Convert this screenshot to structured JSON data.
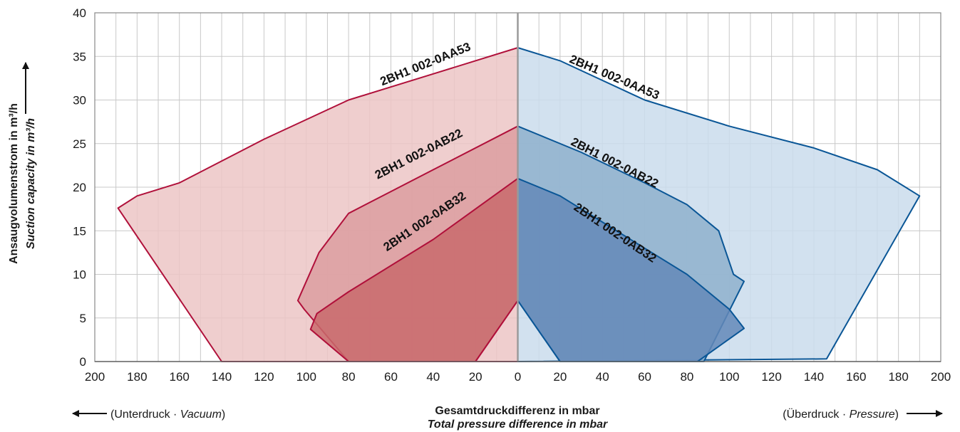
{
  "chart_data": {
    "type": "area",
    "title": "",
    "xlabel": "Gesamtdruckdifferenz in mbar",
    "xlabel_en": "Total pressure difference in mbar",
    "ylabel": "Ansaugvolumenstrom in m³/h",
    "ylabel_en": "Suction capacity in m³/h",
    "left_direction": {
      "prefix": "(Unterdruck · ",
      "italic": "Vacuum",
      "suffix": ")"
    },
    "right_direction": {
      "prefix": "(Überdruck · ",
      "italic": "Pressure",
      "suffix": ")"
    },
    "x_ticks": [
      "200",
      "180",
      "160",
      "140",
      "120",
      "100",
      "80",
      "60",
      "40",
      "20",
      "0",
      "20",
      "40",
      "60",
      "80",
      "100",
      "120",
      "140",
      "160",
      "180",
      "200"
    ],
    "y_ticks": [
      "0",
      "5",
      "10",
      "15",
      "20",
      "25",
      "30",
      "35",
      "40"
    ],
    "xlim": [
      -200,
      200
    ],
    "ylim": [
      0,
      40
    ],
    "grid": true,
    "colors": {
      "vacuum_line": "#b0103a",
      "pressure_line": "#0a5696",
      "vacuum_fill_light": "#ecc6c5",
      "vacuum_fill_mid": "#dc9ea0",
      "vacuum_fill_dark": "#c96a6c",
      "pressure_fill_light": "#cadcec",
      "pressure_fill_mid": "#8fb0cc",
      "pressure_fill_dark": "#6488b8",
      "grid": "#c8c8c8"
    },
    "series": [
      {
        "name": "2BH1 002-0AA53",
        "side": "vacuum",
        "shade": "light",
        "points": [
          [
            0,
            36
          ],
          [
            -40,
            33
          ],
          [
            -80,
            30
          ],
          [
            -120,
            25.5
          ],
          [
            -160,
            20.5
          ],
          [
            -180,
            19
          ],
          [
            -189,
            17.6
          ],
          [
            -140,
            0
          ],
          [
            0,
            0
          ]
        ]
      },
      {
        "name": "2BH1 002-0AB22",
        "side": "vacuum",
        "shade": "mid",
        "points": [
          [
            0,
            27
          ],
          [
            -40,
            22
          ],
          [
            -60,
            19.5
          ],
          [
            -80,
            17
          ],
          [
            -94,
            12.5
          ],
          [
            -104,
            7
          ],
          [
            -101,
            6
          ],
          [
            -80,
            0
          ],
          [
            -20,
            0
          ],
          [
            0,
            7
          ]
        ]
      },
      {
        "name": "2BH1 002-0AB32",
        "side": "vacuum",
        "shade": "dark",
        "points": [
          [
            0,
            21
          ],
          [
            -40,
            14
          ],
          [
            -80,
            8
          ],
          [
            -95,
            5.5
          ],
          [
            -98,
            3.7
          ],
          [
            -80,
            0
          ],
          [
            -20,
            0
          ],
          [
            0,
            7
          ]
        ]
      },
      {
        "name": "2BH1 002-0AA53",
        "side": "pressure",
        "shade": "light",
        "points": [
          [
            0,
            36
          ],
          [
            20,
            34.5
          ],
          [
            60,
            30
          ],
          [
            100,
            27
          ],
          [
            140,
            24.5
          ],
          [
            170,
            22
          ],
          [
            190,
            19
          ],
          [
            146,
            0.3
          ],
          [
            0,
            0
          ]
        ]
      },
      {
        "name": "2BH1 002-0AB22",
        "side": "pressure",
        "shade": "mid",
        "points": [
          [
            0,
            27
          ],
          [
            30,
            24
          ],
          [
            60,
            20.5
          ],
          [
            80,
            18
          ],
          [
            95,
            15
          ],
          [
            102,
            10
          ],
          [
            107,
            9.2
          ],
          [
            88,
            0
          ],
          [
            20,
            0
          ],
          [
            0,
            7
          ]
        ]
      },
      {
        "name": "2BH1 002-0AB32",
        "side": "pressure",
        "shade": "dark",
        "points": [
          [
            0,
            21
          ],
          [
            20,
            19
          ],
          [
            40,
            16
          ],
          [
            60,
            13
          ],
          [
            80,
            10
          ],
          [
            100,
            6
          ],
          [
            107,
            3.8
          ],
          [
            85,
            0
          ],
          [
            20,
            0
          ],
          [
            0,
            7
          ]
        ]
      }
    ]
  }
}
